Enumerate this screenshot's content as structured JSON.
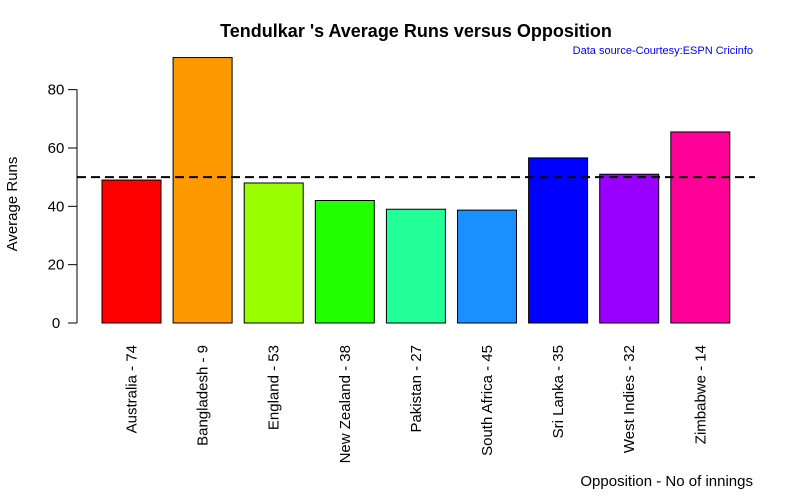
{
  "chart_data": {
    "type": "bar",
    "title": "Tendulkar 's Average Runs versus Opposition",
    "subtitle": "Data source-Courtesy:ESPN Cricinfo",
    "xlabel": "Opposition - No of innings",
    "ylabel": "Average Runs",
    "ylim": [
      0,
      92
    ],
    "yticks": [
      0,
      20,
      40,
      60,
      80
    ],
    "reference_line": 50,
    "categories": [
      "Australia - 74",
      "Bangladesh - 9",
      "England - 53",
      "New Zealand - 38",
      "Pakistan - 27",
      "South Africa - 45",
      "Sri Lanka - 35",
      "West Indies - 32",
      "Zimbabwe - 14"
    ],
    "values": [
      49,
      91,
      48,
      42,
      39,
      38.7,
      56.6,
      51,
      65.5
    ],
    "colors": [
      "#ff0000",
      "#ff9900",
      "#99ff00",
      "#22ff00",
      "#22ff99",
      "#1a90ff",
      "#0000ff",
      "#9900ff",
      "#ff0099"
    ],
    "grid": false,
    "legend": "none"
  }
}
